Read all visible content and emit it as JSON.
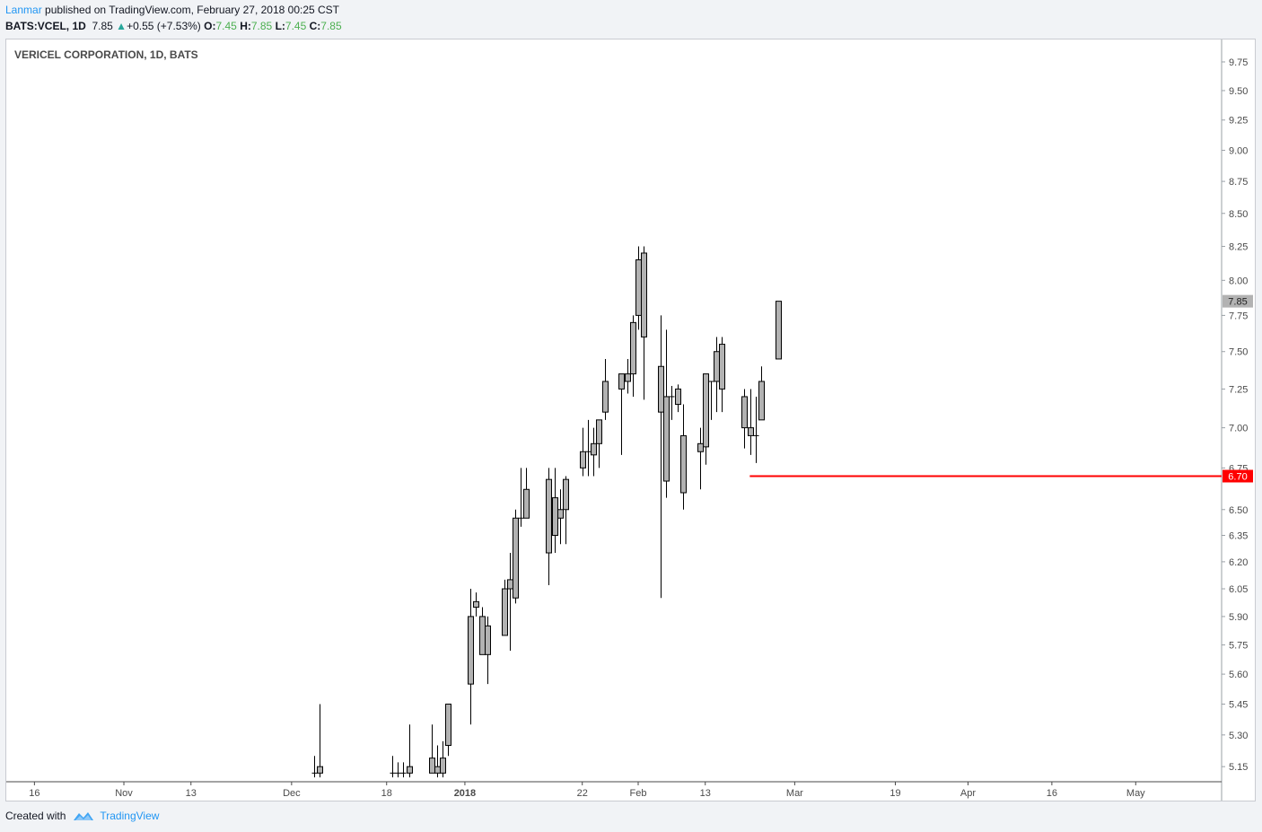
{
  "header": {
    "author": "Lanmar",
    "published_text": "published on TradingView.com, February 27, 2018 00:25 CST",
    "symbol": "BATS:VCEL, 1D",
    "last": "7.85",
    "change": "+0.55 (+7.53%)",
    "o_label": "O:",
    "o": "7.45",
    "h_label": "H:",
    "h": "7.85",
    "l_label": "L:",
    "l": "7.45",
    "c_label": "C:",
    "c": "7.85"
  },
  "footer": {
    "created_with": "Created with",
    "brand": "TradingView"
  },
  "colors": {
    "candle_fill": "#b2b2b2",
    "candle_border": "#000000",
    "price_tag_bg": "#b2b2b2",
    "level_line": "#ff0000",
    "level_tag_bg": "#ff0000",
    "brand": "#2196f3"
  },
  "chart_data": {
    "type": "candlestick",
    "title": "VERICEL CORPORATION, 1D, BATS",
    "y_scale": "log",
    "ylim": [
      5.08,
      9.95
    ],
    "y_ticks": [
      "9.75",
      "9.50",
      "9.25",
      "9.00",
      "8.75",
      "8.50",
      "8.25",
      "8.00",
      "7.75",
      "7.50",
      "7.25",
      "7.00",
      "6.75",
      "6.50",
      "6.35",
      "6.20",
      "6.05",
      "5.90",
      "5.75",
      "5.60",
      "5.45",
      "5.30",
      "5.15"
    ],
    "x_ticks": [
      {
        "date": "2017-10-16",
        "label": "16"
      },
      {
        "date": "2017-11-01",
        "label": "Nov"
      },
      {
        "date": "2017-11-13",
        "label": "13"
      },
      {
        "date": "2017-12-01",
        "label": "Dec"
      },
      {
        "date": "2017-12-18",
        "label": "18"
      },
      {
        "date": "2018-01-01",
        "label": "2018"
      },
      {
        "date": "2018-01-22",
        "label": "22"
      },
      {
        "date": "2018-02-01",
        "label": "Feb"
      },
      {
        "date": "2018-02-13",
        "label": "13"
      },
      {
        "date": "2018-03-01",
        "label": "Mar"
      },
      {
        "date": "2018-03-19",
        "label": "19"
      },
      {
        "date": "2018-04-01",
        "label": "Apr"
      },
      {
        "date": "2018-04-16",
        "label": "16"
      },
      {
        "date": "2018-05-01",
        "label": "May"
      }
    ],
    "last_price": "7.85",
    "level": {
      "value": 6.7,
      "label": "6.70",
      "from_date": "2018-02-20"
    },
    "candles": [
      {
        "date": "2017-12-05",
        "o": 5.12,
        "h": 5.2,
        "l": 5.1,
        "c": 5.12
      },
      {
        "date": "2017-12-06",
        "o": 5.15,
        "h": 5.45,
        "l": 5.1,
        "c": 5.12
      },
      {
        "date": "2017-12-19",
        "o": 5.12,
        "h": 5.2,
        "l": 5.1,
        "c": 5.12
      },
      {
        "date": "2017-12-20",
        "o": 5.12,
        "h": 5.17,
        "l": 5.1,
        "c": 5.12
      },
      {
        "date": "2017-12-21",
        "o": 5.12,
        "h": 5.17,
        "l": 5.1,
        "c": 5.12
      },
      {
        "date": "2017-12-22",
        "o": 5.15,
        "h": 5.35,
        "l": 5.1,
        "c": 5.12
      },
      {
        "date": "2017-12-26",
        "o": 5.19,
        "h": 5.35,
        "l": 5.12,
        "c": 5.12
      },
      {
        "date": "2017-12-27",
        "o": 5.15,
        "h": 5.25,
        "l": 5.1,
        "c": 5.12
      },
      {
        "date": "2017-12-28",
        "o": 5.19,
        "h": 5.27,
        "l": 5.1,
        "c": 5.12
      },
      {
        "date": "2017-12-29",
        "o": 5.25,
        "h": 5.45,
        "l": 5.2,
        "c": 5.45
      },
      {
        "date": "2018-01-02",
        "o": 5.55,
        "h": 6.05,
        "l": 5.35,
        "c": 5.9
      },
      {
        "date": "2018-01-03",
        "o": 5.98,
        "h": 6.03,
        "l": 5.9,
        "c": 5.95
      },
      {
        "date": "2018-01-04",
        "o": 5.9,
        "h": 5.95,
        "l": 5.7,
        "c": 5.7
      },
      {
        "date": "2018-01-05",
        "o": 5.85,
        "h": 5.9,
        "l": 5.55,
        "c": 5.7
      },
      {
        "date": "2018-01-08",
        "o": 5.8,
        "h": 6.1,
        "l": 5.8,
        "c": 6.05
      },
      {
        "date": "2018-01-09",
        "o": 6.05,
        "h": 6.25,
        "l": 5.72,
        "c": 6.1
      },
      {
        "date": "2018-01-10",
        "o": 6.0,
        "h": 6.5,
        "l": 5.97,
        "c": 6.45
      },
      {
        "date": "2018-01-11",
        "o": 6.45,
        "h": 6.75,
        "l": 6.4,
        "c": 6.45
      },
      {
        "date": "2018-01-12",
        "o": 6.45,
        "h": 6.75,
        "l": 6.45,
        "c": 6.62
      },
      {
        "date": "2018-01-16",
        "o": 6.68,
        "h": 6.75,
        "l": 6.07,
        "c": 6.25
      },
      {
        "date": "2018-01-17",
        "o": 6.35,
        "h": 6.75,
        "l": 6.25,
        "c": 6.57
      },
      {
        "date": "2018-01-18",
        "o": 6.5,
        "h": 6.62,
        "l": 6.3,
        "c": 6.45
      },
      {
        "date": "2018-01-19",
        "o": 6.5,
        "h": 6.7,
        "l": 6.3,
        "c": 6.68
      },
      {
        "date": "2018-01-22",
        "o": 6.75,
        "h": 7.0,
        "l": 6.7,
        "c": 6.85
      },
      {
        "date": "2018-01-23",
        "o": 6.85,
        "h": 7.05,
        "l": 6.7,
        "c": 6.85
      },
      {
        "date": "2018-01-24",
        "o": 6.83,
        "h": 7.0,
        "l": 6.7,
        "c": 6.9
      },
      {
        "date": "2018-01-25",
        "o": 6.9,
        "h": 7.05,
        "l": 6.75,
        "c": 7.05
      },
      {
        "date": "2018-01-26",
        "o": 7.1,
        "h": 7.45,
        "l": 7.05,
        "c": 7.3
      },
      {
        "date": "2018-01-29",
        "o": 7.25,
        "h": 7.35,
        "l": 6.83,
        "c": 7.35
      },
      {
        "date": "2018-01-30",
        "o": 7.3,
        "h": 7.45,
        "l": 7.22,
        "c": 7.35
      },
      {
        "date": "2018-01-31",
        "o": 7.35,
        "h": 7.75,
        "l": 7.2,
        "c": 7.7
      },
      {
        "date": "2018-02-01",
        "o": 7.75,
        "h": 8.25,
        "l": 7.65,
        "c": 8.15
      },
      {
        "date": "2018-02-02",
        "o": 8.2,
        "h": 8.25,
        "l": 7.18,
        "c": 7.6
      },
      {
        "date": "2018-02-05",
        "o": 7.4,
        "h": 7.75,
        "l": 6.0,
        "c": 7.1
      },
      {
        "date": "2018-02-06",
        "o": 7.2,
        "h": 7.65,
        "l": 6.57,
        "c": 6.67
      },
      {
        "date": "2018-02-07",
        "o": 7.2,
        "h": 7.27,
        "l": 7.05,
        "c": 7.2
      },
      {
        "date": "2018-02-08",
        "o": 7.25,
        "h": 7.28,
        "l": 7.1,
        "c": 7.15
      },
      {
        "date": "2018-02-09",
        "o": 6.95,
        "h": 7.15,
        "l": 6.5,
        "c": 6.6
      },
      {
        "date": "2018-02-12",
        "o": 6.9,
        "h": 7.0,
        "l": 6.62,
        "c": 6.85
      },
      {
        "date": "2018-02-13",
        "o": 6.88,
        "h": 7.35,
        "l": 6.77,
        "c": 7.35
      },
      {
        "date": "2018-02-14",
        "o": 7.3,
        "h": 7.3,
        "l": 7.05,
        "c": 7.3
      },
      {
        "date": "2018-02-15",
        "o": 7.3,
        "h": 7.6,
        "l": 7.1,
        "c": 7.5
      },
      {
        "date": "2018-02-16",
        "o": 7.55,
        "h": 7.6,
        "l": 7.1,
        "c": 7.25
      },
      {
        "date": "2018-02-20",
        "o": 7.2,
        "h": 7.25,
        "l": 6.87,
        "c": 7.0
      },
      {
        "date": "2018-02-21",
        "o": 7.0,
        "h": 7.25,
        "l": 6.83,
        "c": 6.95
      },
      {
        "date": "2018-02-22",
        "o": 6.95,
        "h": 7.2,
        "l": 6.78,
        "c": 6.95
      },
      {
        "date": "2018-02-23",
        "o": 7.05,
        "h": 7.4,
        "l": 7.05,
        "c": 7.3
      },
      {
        "date": "2018-02-26",
        "o": 7.45,
        "h": 7.85,
        "l": 7.45,
        "c": 7.85
      }
    ]
  }
}
